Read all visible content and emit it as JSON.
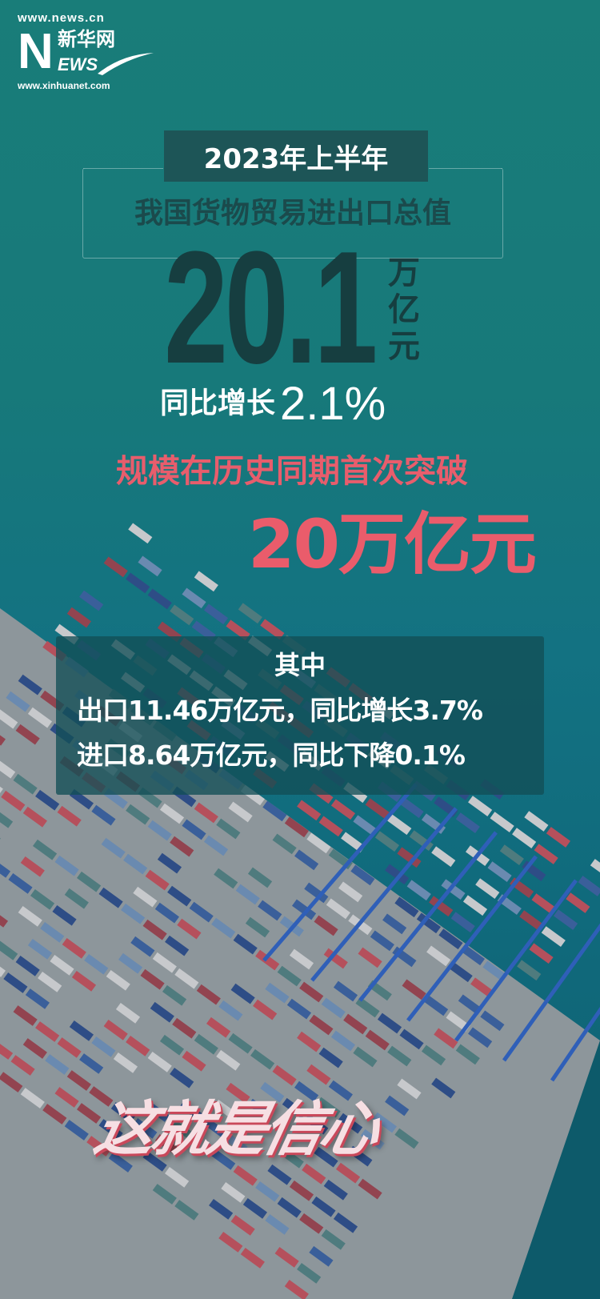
{
  "logo": {
    "url_top": "www.news.cn",
    "brand_cn": "新华网",
    "brand_letter": "N",
    "brand_en": "EWS",
    "url_bottom": "www.xinhuanet.com"
  },
  "headline": {
    "period": "2023年上半年",
    "subject": "我国货物贸易进出口总值",
    "total_value": "20.1",
    "total_unit": "万亿元",
    "growth_label": "同比增长",
    "growth_value": "2.1%",
    "milestone_line1": "规模在历史同期首次突破",
    "milestone_line2": "20万亿元"
  },
  "breakdown": {
    "heading": "其中",
    "export": "出口11.46万亿元，同比增长3.7%",
    "import": "进口8.64万亿元，同比下降0.1%"
  },
  "slogan": "这就是信心",
  "colors": {
    "background": "#17797a",
    "title_box": "#1d5557",
    "number": "#163e40",
    "accent": "#e85d6c"
  }
}
